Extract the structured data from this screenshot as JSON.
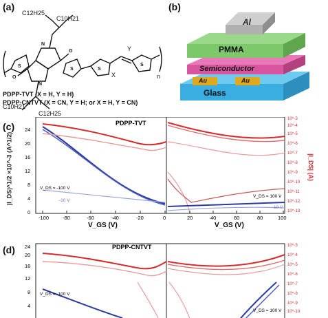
{
  "panels": {
    "a": "(a)",
    "b": "(b)",
    "c": "(c)",
    "d": "(d)"
  },
  "molecule": {
    "top_chain_1": "C12H25",
    "top_chain_2": "C10H21",
    "bottom_chain_1": "C10H21",
    "bottom_chain_2": "C12H25",
    "x_label": "X",
    "y_label": "Y",
    "n_label": "n",
    "caption_line1": "PDPP-TVT (X = H, Y = H)",
    "caption_line2": "PDPP-CNTVT (X = CN, Y = H; or X = H, Y = CN)"
  },
  "device": {
    "layers": [
      "Al",
      "PMMA",
      "Semiconductor",
      "Au",
      "Au",
      "Glass"
    ],
    "colors": {
      "al": "#b0b0b0",
      "pmma": "#7cc86a",
      "semi": "#d9559f",
      "au": "#e0a81c",
      "glass": "#3aaee0"
    }
  },
  "chart_c": {
    "title": "PDPP-TVT",
    "ylabel_left": "|I_DS|^1/2 ×10^-3 (A^1/2)",
    "ylabel_right": "|I_DS| (A)",
    "xlabel": "V_GS (V)",
    "left_xticks": [
      "-100",
      "-80",
      "-60",
      "-40",
      "-20",
      "0"
    ],
    "right_xticks": [
      "0",
      "20",
      "40",
      "60",
      "80",
      "100"
    ],
    "left_yticks": [
      "0",
      "4",
      "8",
      "12",
      "16",
      "20",
      "24"
    ],
    "right_yticks": [
      "10^-13",
      "10^-12",
      "10^-11",
      "10^-10",
      "10^-9",
      "10^-8",
      "10^-7",
      "10^-6",
      "10^-5",
      "10^-4",
      "10^-3"
    ],
    "annot_left_1": "V_DS = -100 V",
    "annot_left_2": "-10 V",
    "annot_right_1": "V_DS = 100 V",
    "annot_right_2": "10 V"
  },
  "chart_d": {
    "title": "PDPP-CNTVT",
    "left_yticks": [
      "4",
      "8",
      "12",
      "16",
      "20",
      "24"
    ],
    "right_yticks": [
      "10^-4",
      "10^-5",
      "10^-6",
      "10^-7",
      "10^-8",
      "10^-9",
      "10^-10",
      "10^-3"
    ],
    "annot_left_1": "V_DS = -100 V",
    "annot_right_1": "V_DS = 100 V"
  }
}
